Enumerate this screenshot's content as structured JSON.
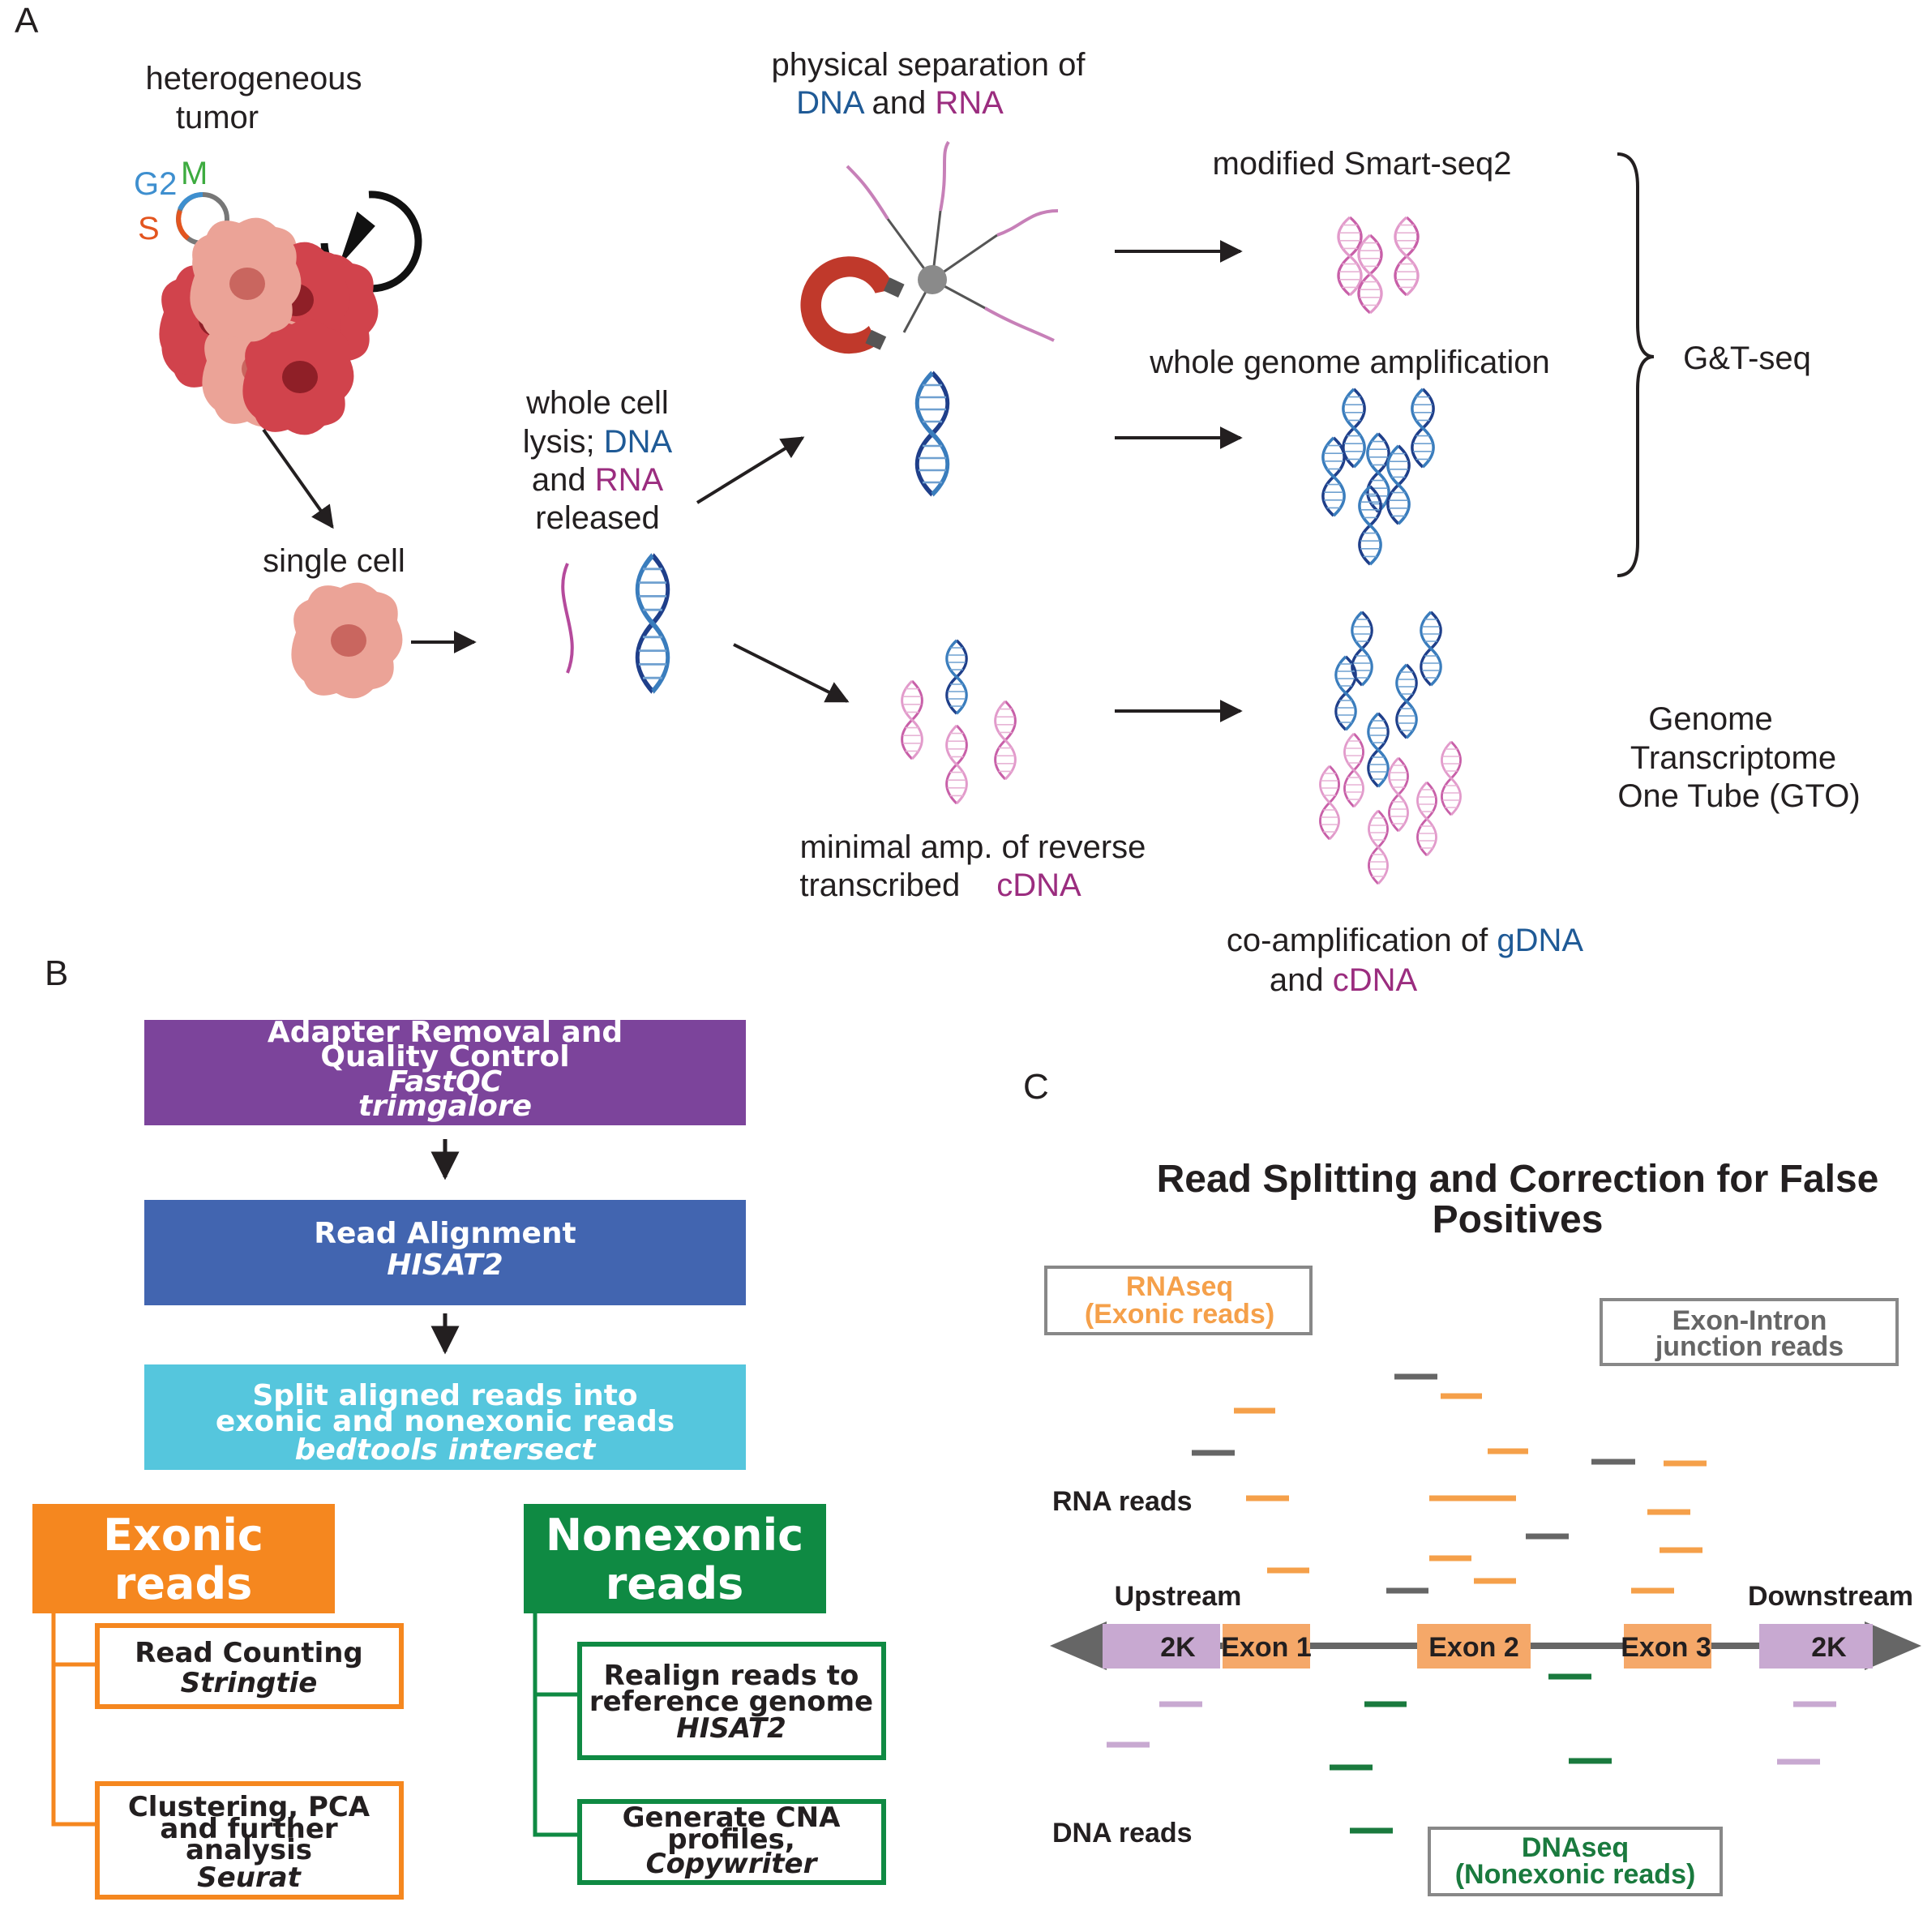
{
  "panel_a": {
    "label": "A",
    "tumor": {
      "line1": "heterogeneous",
      "line2": "tumor"
    },
    "cycle": {
      "g2": "G2",
      "m": "M",
      "s": "S"
    },
    "single_cell": "single cell",
    "lysis": {
      "line1": "whole cell",
      "line2a": "lysis; ",
      "dna": "DNA",
      "line3a": "and ",
      "rna": "RNA",
      "line4": "released"
    },
    "separation": {
      "line1": "physical separation of",
      "dna": "DNA",
      "and": " and ",
      "rna": "RNA"
    },
    "smartseq": "modified Smart-seq2",
    "wga": "whole genome amplification",
    "gtseq": "G&T-seq",
    "minimal_amp": {
      "line1": "minimal amp. of reverse",
      "line2a": "transcribed",
      "cdna": "cDNA"
    },
    "coamp": {
      "line1a": "co-amplification of ",
      "gdna": "gDNA",
      "line2a": "and ",
      "cdna": "cDNA"
    },
    "gto": {
      "line1": "Genome",
      "line2": "Transcriptome",
      "line3": "One Tube (GTO)"
    }
  },
  "panel_b": {
    "label": "B",
    "box1": {
      "line1": "Adapter Removal and",
      "line2": "Quality Control",
      "tool1": "FastQC",
      "tool2": "trimgalore",
      "color": "#7c449b"
    },
    "box2": {
      "line1": "Read Alignment",
      "tool": "HISAT2",
      "color": "#4265b0"
    },
    "box3": {
      "line1": "Split aligned reads into",
      "line2": "exonic and nonexonic reads",
      "tool": "bedtools intersect",
      "color": "#55c6dd"
    },
    "exonic": {
      "line1": "Exonic",
      "line2": "reads",
      "color": "#f5871f",
      "sub1": {
        "line1": "Read Counting",
        "tool": "Stringtie"
      },
      "sub2": {
        "line1": "Clustering, PCA",
        "line2": "and further",
        "line3": "analysis",
        "tool": "Seurat"
      }
    },
    "nonexonic": {
      "line1": "Nonexonic",
      "line2": "reads",
      "color": "#0f8a43",
      "sub1": {
        "line1": "Realign reads to",
        "line2": "reference genome",
        "tool": "HISAT2"
      },
      "sub2": {
        "line1": "Generate CNA",
        "line2": "profiles,",
        "tool": "Copywriter"
      }
    }
  },
  "panel_c": {
    "label": "C",
    "title1": "Read Splitting and Correction for False",
    "title2": "Positives",
    "rnaseq": {
      "line1": "RNAseq",
      "line2": "(Exonic reads)"
    },
    "junction": {
      "line1": "Exon-Intron",
      "line2": "junction reads"
    },
    "rna_reads": "RNA reads",
    "dna_reads": "DNA reads",
    "upstream": "Upstream",
    "downstream": "Downstream",
    "flank_left": "2K",
    "flank_right": "2K",
    "exon1": "Exon 1",
    "exon2": "Exon 2",
    "exon3": "Exon 3",
    "dnaseq": {
      "line1": "DNAseq",
      "line2": "(Nonexonic reads)"
    },
    "colors": {
      "exonic": "#f5a04a",
      "junction": "#666666",
      "dna": "#1a7a3e",
      "flank": "#c8a9d1",
      "exon": "#f5a869"
    }
  }
}
